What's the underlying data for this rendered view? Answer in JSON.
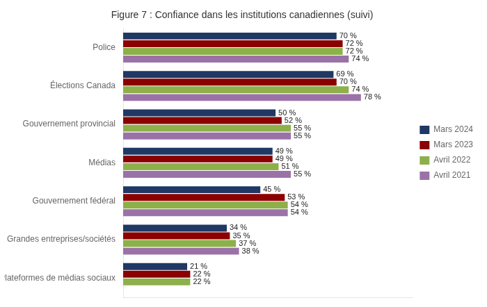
{
  "chart_data": {
    "type": "bar",
    "orientation": "horizontal",
    "title": "Figure 7 : Confiance dans les institutions canadiennes (suivi)",
    "categories": [
      "Plateformes de médias sociaux",
      "Grandes entreprises/sociétés",
      "Gouvernement fédéral",
      "Médias",
      "Gouvernement provincial",
      "Élections Canada",
      "Police"
    ],
    "series": [
      {
        "name": "Mars 2024",
        "color": "#1f3864",
        "values": [
          21,
          34,
          45,
          49,
          50,
          69,
          70
        ],
        "value_labels": [
          "21 %",
          "34 %",
          "45 %",
          "49 %",
          "50 %",
          "69 %",
          "70 %"
        ]
      },
      {
        "name": "Mars 2023",
        "color": "#8b0000",
        "values": [
          22,
          35,
          53,
          49,
          52,
          70,
          72
        ],
        "value_labels": [
          "22 %",
          "35 %",
          "53 %",
          "49 %",
          "52 %",
          "70 %",
          "72 %"
        ]
      },
      {
        "name": "Avril 2022",
        "color": "#8db04a",
        "values": [
          22,
          37,
          54,
          51,
          55,
          74,
          72
        ],
        "value_labels": [
          "22 %",
          "37 %",
          "54 %",
          "51 %",
          "55 %",
          "74 %",
          "72 %"
        ]
      },
      {
        "name": "Avril 2021",
        "color": "#9b72a8",
        "values": [
          null,
          38,
          54,
          55,
          55,
          78,
          74
        ],
        "value_labels": [
          null,
          "38 %",
          "54 %",
          "55 %",
          "55 %",
          "78 %",
          "74 %"
        ]
      }
    ],
    "xlim": [
      0,
      95
    ],
    "xticks": [],
    "tick_labels": "y",
    "grid": false,
    "legend": "right",
    "data_labels": true
  }
}
